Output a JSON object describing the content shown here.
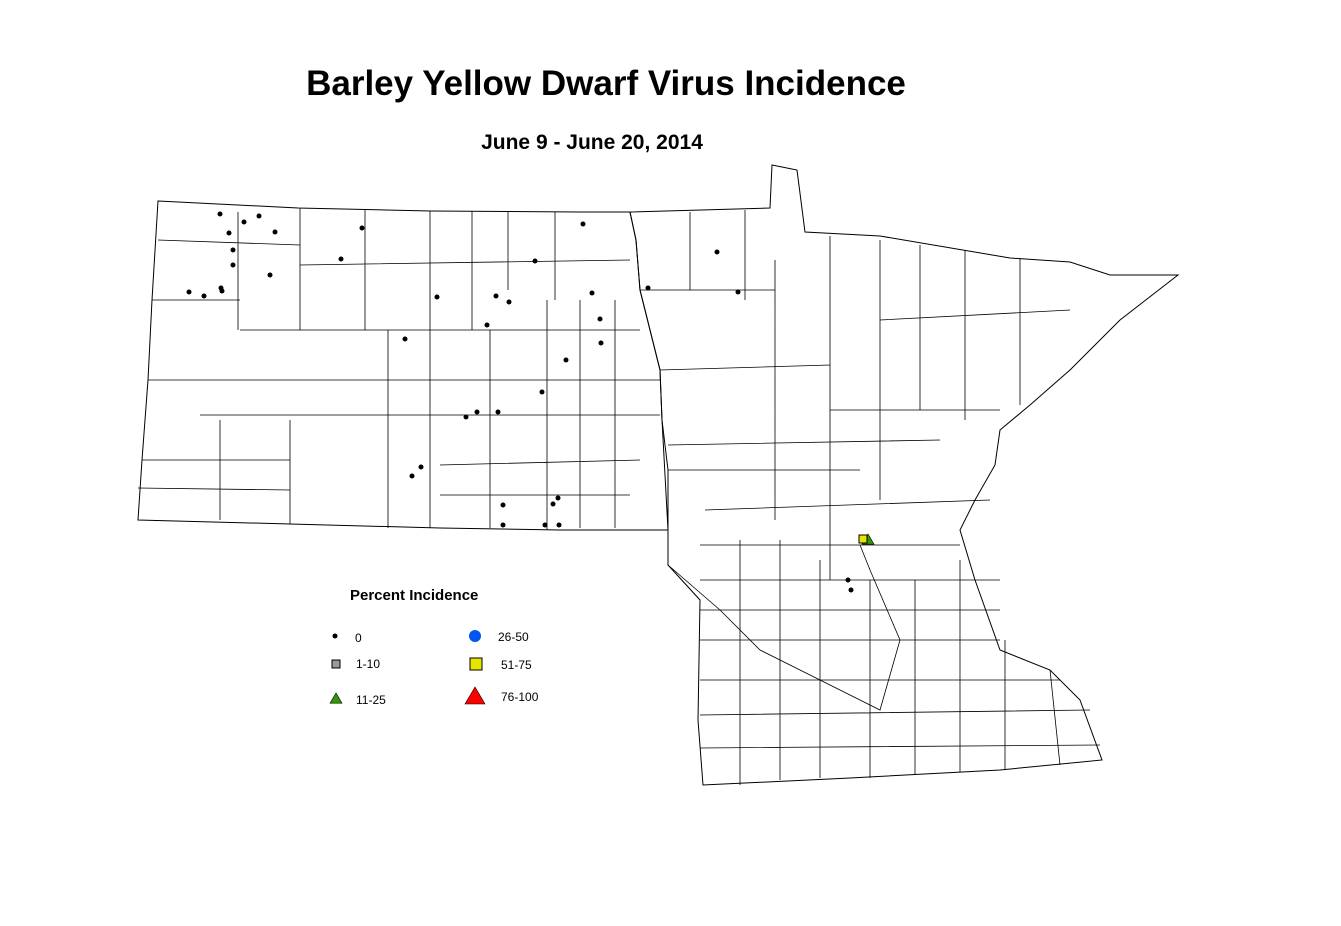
{
  "title": "Barley Yellow Dwarf Virus Incidence",
  "subtitle": "June 9 - June 20, 2014",
  "legend": {
    "title": "Percent Incidence",
    "classes": [
      {
        "label": "0",
        "symbol": "dot",
        "color": "#000000"
      },
      {
        "label": "1-10",
        "symbol": "square",
        "color": "#999999"
      },
      {
        "label": "11-25",
        "symbol": "triangle",
        "color": "#339900"
      },
      {
        "label": "26-50",
        "symbol": "circle",
        "color": "#0055ee"
      },
      {
        "label": "51-75",
        "symbol": "square",
        "color": "#e6e600"
      },
      {
        "label": "76-100",
        "symbol": "triangle",
        "color": "#ff0000"
      }
    ]
  },
  "observations": {
    "North Dakota": {
      "0": 40
    },
    "Minnesota": {
      "0": 2,
      "11-25": 1,
      "51-75": 1
    }
  }
}
